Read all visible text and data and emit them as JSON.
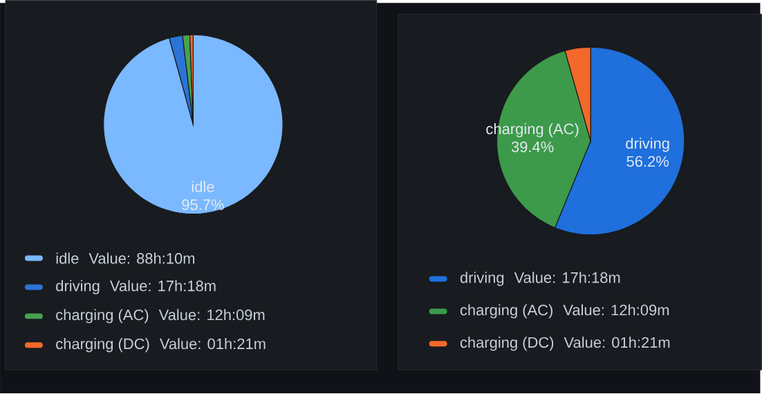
{
  "chart_data": [
    {
      "type": "pie",
      "categories": [
        "idle",
        "driving",
        "charging (AC)",
        "charging (DC)"
      ],
      "values": [
        95.7,
        2.4,
        1.3,
        0.6
      ],
      "colors": [
        "#7ab8ff",
        "#2b74d6",
        "#48a24e",
        "#f2692a"
      ],
      "value_labels": [
        "95.7%",
        null,
        null,
        null
      ],
      "legend": "bottom",
      "annotations": [
        "Value: 88h:10m",
        "Value: 17h:18m",
        "Value: 12h:09m",
        "Value: 01h:21m"
      ]
    },
    {
      "type": "pie",
      "categories": [
        "driving",
        "charging (AC)",
        "charging (DC)"
      ],
      "values": [
        56.2,
        39.4,
        4.4
      ],
      "colors": [
        "#1f6fdc",
        "#3d9a4a",
        "#f2692a"
      ],
      "value_labels": [
        "56.2%",
        "39.4%",
        null
      ],
      "legend": "bottom",
      "annotations": [
        "Value: 17h:18m",
        "Value: 12h:09m",
        "Value: 01h:21m"
      ]
    }
  ]
}
